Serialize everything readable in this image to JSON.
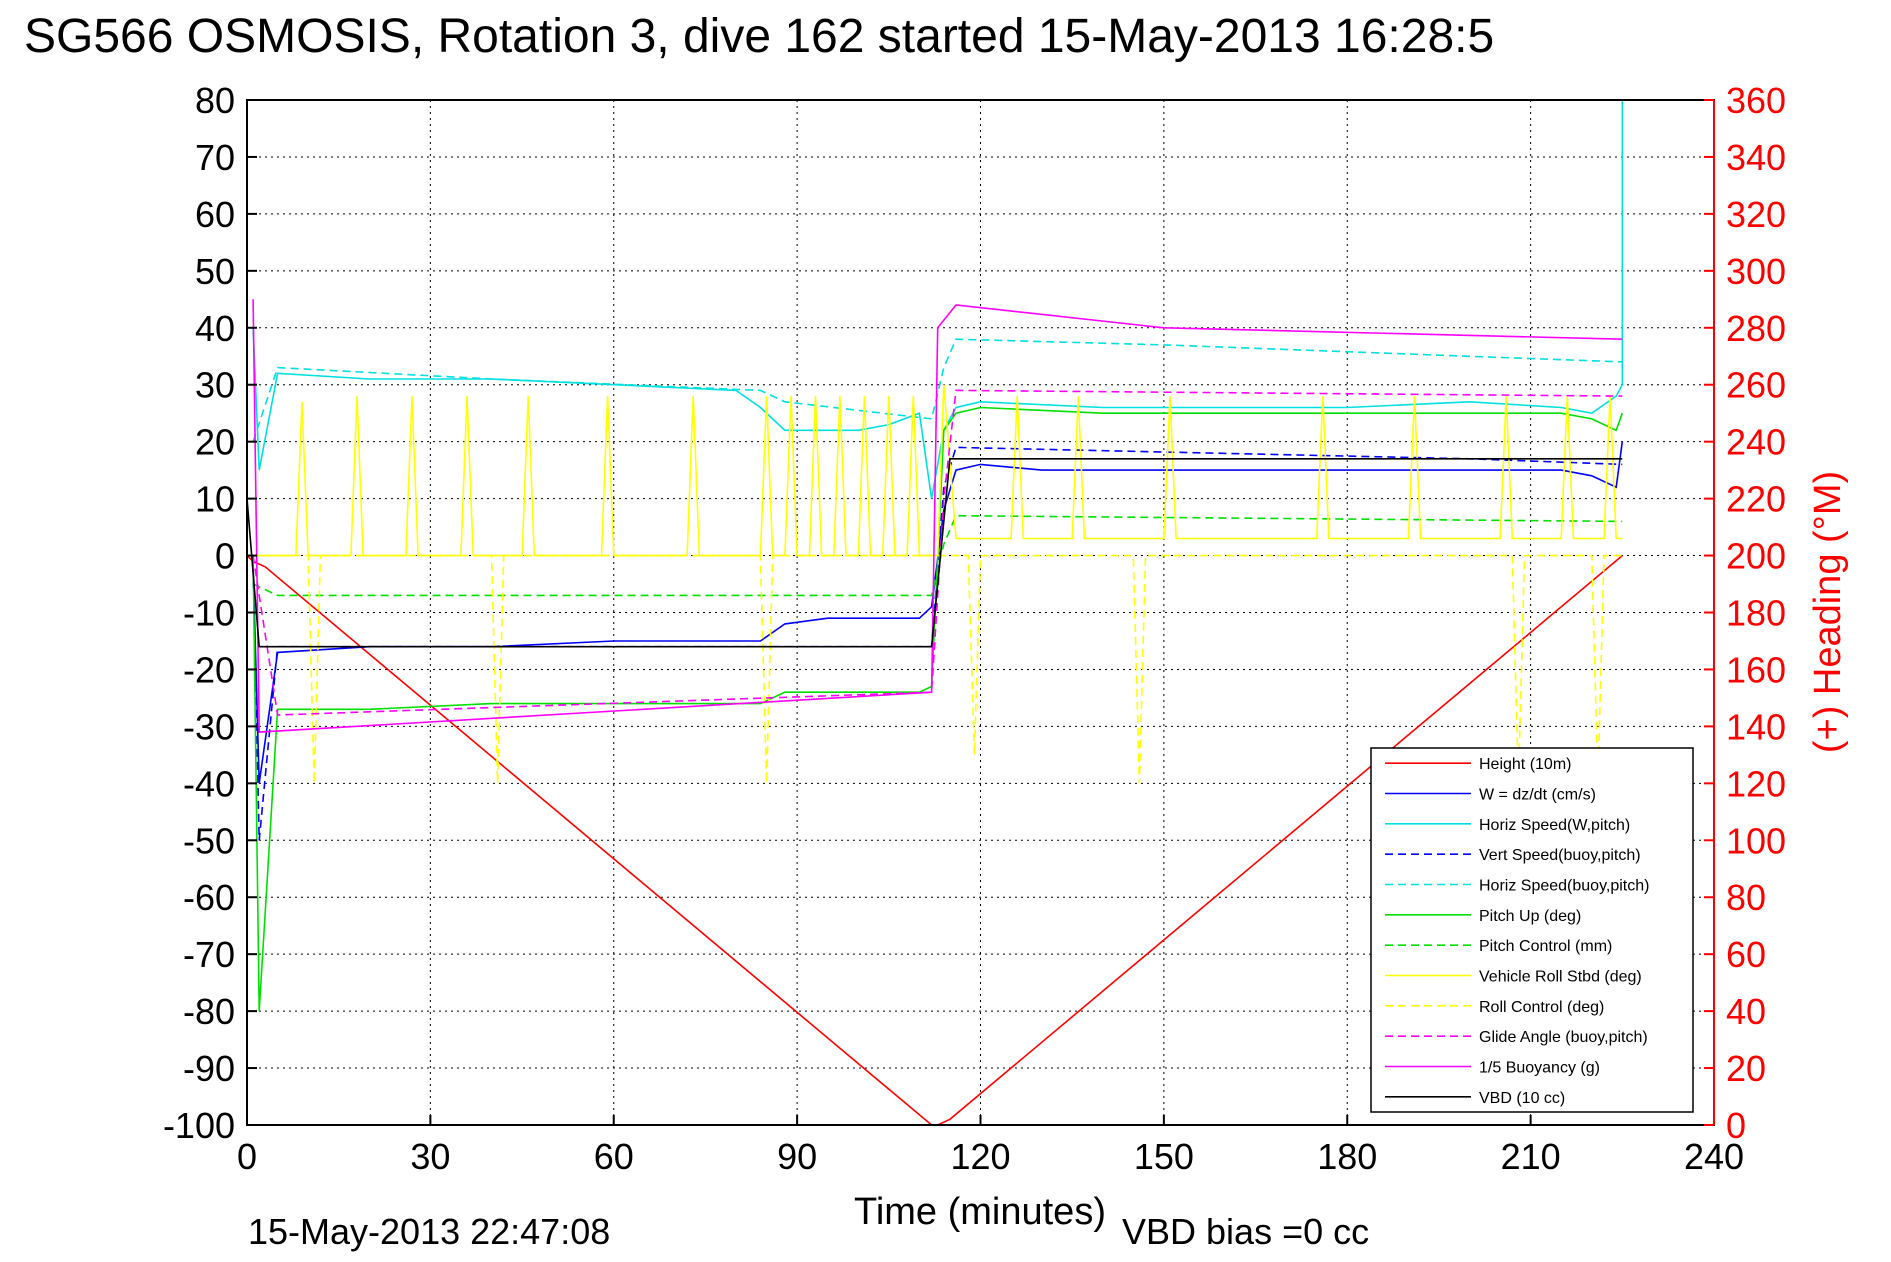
{
  "chart_data": {
    "type": "line",
    "title": "SG566 OSMOSIS, Rotation 3, dive 162 started 15-May-2013 16:28:5",
    "xlabel": "Time (minutes)",
    "ylabel_right": "(+) Heading (°M)",
    "footer_date": "15-May-2013 22:47:08",
    "footer_bias": "VBD bias =0 cc",
    "xlim": [
      0,
      240
    ],
    "ylim": [
      -100,
      80
    ],
    "y2lim": [
      0,
      360
    ],
    "x_ticks": [
      "0",
      "30",
      "60",
      "90",
      "120",
      "150",
      "180",
      "210",
      "240"
    ],
    "y_ticks": [
      "80",
      "70",
      "60",
      "50",
      "40",
      "30",
      "20",
      "10",
      "0",
      "-10",
      "-20",
      "-30",
      "-40",
      "-50",
      "-60",
      "-70",
      "-80",
      "-90",
      "-100"
    ],
    "y2_ticks": [
      "360",
      "340",
      "320",
      "300",
      "280",
      "260",
      "240",
      "220",
      "200",
      "180",
      "160",
      "140",
      "120",
      "100",
      "80",
      "60",
      "40",
      "20",
      "0"
    ],
    "grid": true,
    "legend_position": "lower-right",
    "series": [
      {
        "name": "Height (10m)",
        "color": "#ff0000",
        "dash": "solid",
        "x": [
          0,
          1,
          3,
          112,
          113,
          115,
          225
        ],
        "y": [
          0,
          -1,
          -2,
          -100,
          -100,
          -99,
          0
        ]
      },
      {
        "name": "W = dz/dt (cm/s)",
        "color": "#0000ff",
        "dash": "solid",
        "x": [
          1,
          2,
          5,
          20,
          40,
          60,
          84,
          88,
          95,
          100,
          105,
          110,
          112,
          114,
          116,
          120,
          130,
          140,
          150,
          160,
          180,
          200,
          215,
          220,
          224,
          225
        ],
        "y": [
          -2,
          -40,
          -17,
          -16,
          -16,
          -15,
          -15,
          -12,
          -11,
          -11,
          -11,
          -11,
          -9,
          8,
          15,
          16,
          15,
          15,
          15,
          15,
          15,
          15,
          15,
          14,
          12,
          20
        ]
      },
      {
        "name": "Horiz Speed(W,pitch)",
        "color": "#00e0e0",
        "dash": "solid",
        "x": [
          1,
          2,
          5,
          20,
          40,
          60,
          80,
          84,
          88,
          95,
          100,
          105,
          110,
          112,
          114,
          116,
          120,
          140,
          160,
          180,
          200,
          215,
          220,
          224,
          225,
          225
        ],
        "y": [
          40,
          15,
          32,
          31,
          31,
          30,
          29,
          26,
          22,
          22,
          22,
          23,
          25,
          10,
          22,
          26,
          27,
          26,
          26,
          26,
          27,
          26,
          25,
          28,
          30,
          80
        ]
      },
      {
        "name": "Vert Speed(buoy,pitch)",
        "color": "#0000ff",
        "dash": "dashed",
        "x": [
          1,
          2,
          5,
          112,
          114,
          116,
          200,
          225
        ],
        "y": [
          -2,
          -50,
          -16,
          -16,
          12,
          19,
          17,
          16
        ]
      },
      {
        "name": "Horiz Speed(buoy,pitch)",
        "color": "#00e0e0",
        "dash": "dashed",
        "x": [
          1,
          5,
          40,
          84,
          88,
          112,
          114,
          116,
          150,
          200,
          225
        ],
        "y": [
          20,
          33,
          31,
          29,
          27,
          24,
          33,
          38,
          37,
          35,
          34
        ]
      },
      {
        "name": "Pitch Up (deg)",
        "color": "#00e000",
        "dash": "solid",
        "x": [
          1,
          2,
          5,
          20,
          40,
          60,
          84,
          88,
          95,
          100,
          110,
          112,
          114,
          116,
          120,
          140,
          160,
          180,
          200,
          215,
          220,
          224,
          225
        ],
        "y": [
          0,
          -80,
          -27,
          -27,
          -26,
          -26,
          -26,
          -24,
          -24,
          -24,
          -24,
          -23,
          22,
          25,
          26,
          25,
          25,
          25,
          25,
          25,
          24,
          22,
          25
        ]
      },
      {
        "name": "Pitch Control (mm)",
        "color": "#00e000",
        "dash": "dashed",
        "x": [
          1,
          5,
          112,
          114,
          116,
          225
        ],
        "y": [
          -5,
          -7,
          -7,
          2,
          7,
          6
        ]
      },
      {
        "name": "Vehicle Roll Stbd (deg)",
        "color": "#ffff00",
        "dash": "solid",
        "x": [
          1,
          8,
          9,
          10,
          17,
          18,
          19,
          26,
          27,
          28,
          35,
          36,
          37,
          45,
          46,
          47,
          58,
          59,
          60,
          72,
          73,
          74,
          84,
          85,
          86,
          88,
          89,
          90,
          92,
          93,
          94,
          96,
          97,
          98,
          100,
          101,
          102,
          104,
          105,
          106,
          108,
          109,
          110,
          113,
          114,
          116,
          125,
          126,
          127,
          135,
          136,
          137,
          150,
          151,
          152,
          175,
          176,
          177,
          190,
          191,
          192,
          205,
          206,
          207,
          215,
          216,
          217,
          222,
          223,
          224,
          225
        ],
        "y": [
          0,
          0,
          27,
          0,
          0,
          28,
          0,
          0,
          28,
          0,
          0,
          28,
          0,
          0,
          28,
          0,
          0,
          28,
          0,
          0,
          28,
          0,
          0,
          28,
          0,
          0,
          28,
          0,
          0,
          28,
          0,
          0,
          28,
          0,
          0,
          28,
          0,
          0,
          28,
          0,
          0,
          28,
          0,
          0,
          30,
          3,
          3,
          28,
          3,
          3,
          28,
          3,
          3,
          28,
          3,
          3,
          28,
          3,
          3,
          28,
          3,
          3,
          28,
          3,
          3,
          28,
          3,
          3,
          28,
          3,
          3
        ]
      },
      {
        "name": "Roll Control (deg)",
        "color": "#ffff00",
        "dash": "dashed",
        "x": [
          1,
          10,
          11,
          12,
          40,
          41,
          42,
          84,
          85,
          86,
          113,
          114,
          118,
          119,
          120,
          145,
          146,
          147,
          207,
          208,
          209,
          220,
          221,
          222,
          225
        ],
        "y": [
          0,
          0,
          -40,
          0,
          0,
          -40,
          0,
          0,
          -40,
          0,
          0,
          0,
          0,
          -35,
          0,
          0,
          -40,
          0,
          0,
          -40,
          0,
          0,
          -40,
          0,
          0
        ]
      },
      {
        "name": "Glide Angle (buoy,pitch)",
        "color": "#ff00ff",
        "dash": "dashed",
        "x": [
          1,
          5,
          112,
          114,
          116,
          225
        ],
        "y": [
          0,
          -28,
          -24,
          10,
          29,
          28
        ]
      },
      {
        "name": "1/5 Buoyancy (g)",
        "color": "#ff00ff",
        "dash": "solid",
        "x": [
          1,
          2,
          112,
          113,
          116,
          150,
          225,
          225
        ],
        "y": [
          45,
          -31,
          -24,
          40,
          44,
          40,
          38,
          38
        ]
      },
      {
        "name": "VBD (10 cc)",
        "color": "#000000",
        "dash": "solid",
        "x": [
          0,
          2,
          4,
          112,
          115,
          225
        ],
        "y": [
          10,
          -16,
          -16,
          -16,
          17,
          17
        ]
      }
    ]
  }
}
